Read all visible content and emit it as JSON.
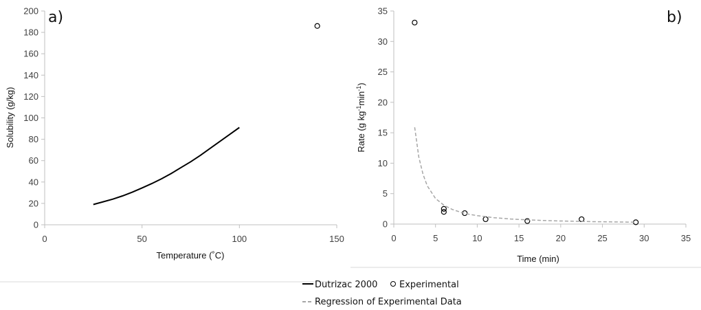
{
  "chart_data": [
    {
      "type": "line",
      "panel_label": "a)",
      "xlabel": "Temperature (˚C)",
      "ylabel": "Solubility (g/kg)",
      "xlim": [
        0,
        150
      ],
      "ylim": [
        0,
        200
      ],
      "xticks": [
        0,
        50,
        100,
        150
      ],
      "yticks": [
        0,
        20,
        40,
        60,
        80,
        100,
        120,
        140,
        160,
        180,
        200
      ],
      "grid": false,
      "series": [
        {
          "name": "Dutrizac 2000",
          "kind": "line",
          "color": "#000000",
          "x": [
            25,
            30,
            35,
            40,
            45,
            50,
            55,
            60,
            65,
            70,
            75,
            80,
            85,
            90,
            95,
            100
          ],
          "y": [
            19,
            21.5,
            24,
            27,
            30.5,
            34.5,
            38.5,
            43,
            48,
            53.5,
            59,
            65,
            71.5,
            78,
            84.5,
            91
          ]
        },
        {
          "name": "Experimental",
          "kind": "scatter",
          "marker": "open-circle",
          "color": "#000000",
          "x": [
            140
          ],
          "y": [
            186
          ]
        }
      ]
    },
    {
      "type": "scatter",
      "panel_label": "b)",
      "xlabel": "Time (min)",
      "ylabel": "Rate (g kg-1min-1)",
      "xlim": [
        0,
        35
      ],
      "ylim": [
        0,
        35
      ],
      "xticks": [
        0,
        5,
        10,
        15,
        20,
        25,
        30,
        35
      ],
      "yticks": [
        0,
        5,
        10,
        15,
        20,
        25,
        30,
        35
      ],
      "grid": false,
      "series": [
        {
          "name": "Experimental",
          "kind": "scatter",
          "marker": "open-circle",
          "color": "#000000",
          "x": [
            2.5,
            6,
            6,
            8.5,
            11,
            16,
            22.5,
            29
          ],
          "y": [
            33.1,
            2.5,
            2.0,
            1.8,
            0.8,
            0.5,
            0.8,
            0.3
          ]
        },
        {
          "name": "Regression of Experimental Data",
          "kind": "line",
          "style": "dashed",
          "color": "#a6a6a6",
          "x": [
            2.5,
            3,
            3.5,
            4,
            5,
            6,
            7,
            8,
            9,
            10,
            12,
            14,
            16,
            18,
            20,
            22,
            24,
            26,
            28,
            29
          ],
          "y": [
            15.9,
            11.0,
            8.2,
            6.3,
            4.2,
            3.1,
            2.4,
            1.95,
            1.62,
            1.39,
            1.05,
            0.84,
            0.7,
            0.59,
            0.51,
            0.45,
            0.4,
            0.36,
            0.33,
            0.31
          ]
        }
      ]
    }
  ],
  "legend": {
    "placement": "bottom-center",
    "items": [
      {
        "label": "Dutrizac 2000",
        "symbol": "solid-line"
      },
      {
        "label": "Experimental",
        "symbol": "open-circle"
      },
      {
        "label": "Regression of Experimental Data",
        "symbol": "dashed-line"
      }
    ]
  }
}
